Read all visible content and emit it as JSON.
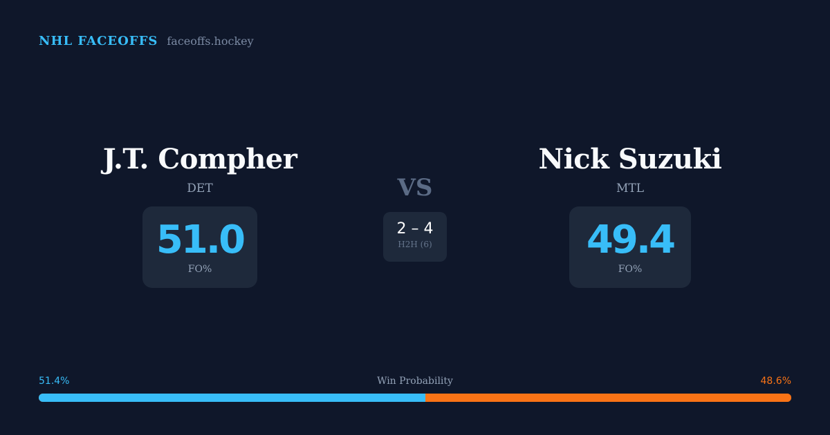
{
  "brand": {
    "name": "NHL FACEOFFS",
    "site": "faceoffs.hockey"
  },
  "players": [
    {
      "name": "J.T. Compher",
      "team": "DET",
      "fo_pct": "51.0",
      "fo_label": "FO%"
    },
    {
      "name": "Nick Suzuki",
      "team": "MTL",
      "fo_pct": "49.4",
      "fo_label": "FO%"
    }
  ],
  "vs": "VS",
  "h2h": {
    "score": "2 – 4",
    "label": "H2H (6)"
  },
  "win_probability": {
    "title": "Win Probability",
    "left": "51.4%",
    "right": "48.6%",
    "left_value": 51.4,
    "right_value": 48.6
  },
  "colors": {
    "background": "#0f172a",
    "accent_left": "#38bdf8",
    "accent_right": "#f97316",
    "card": "#1e293b"
  }
}
